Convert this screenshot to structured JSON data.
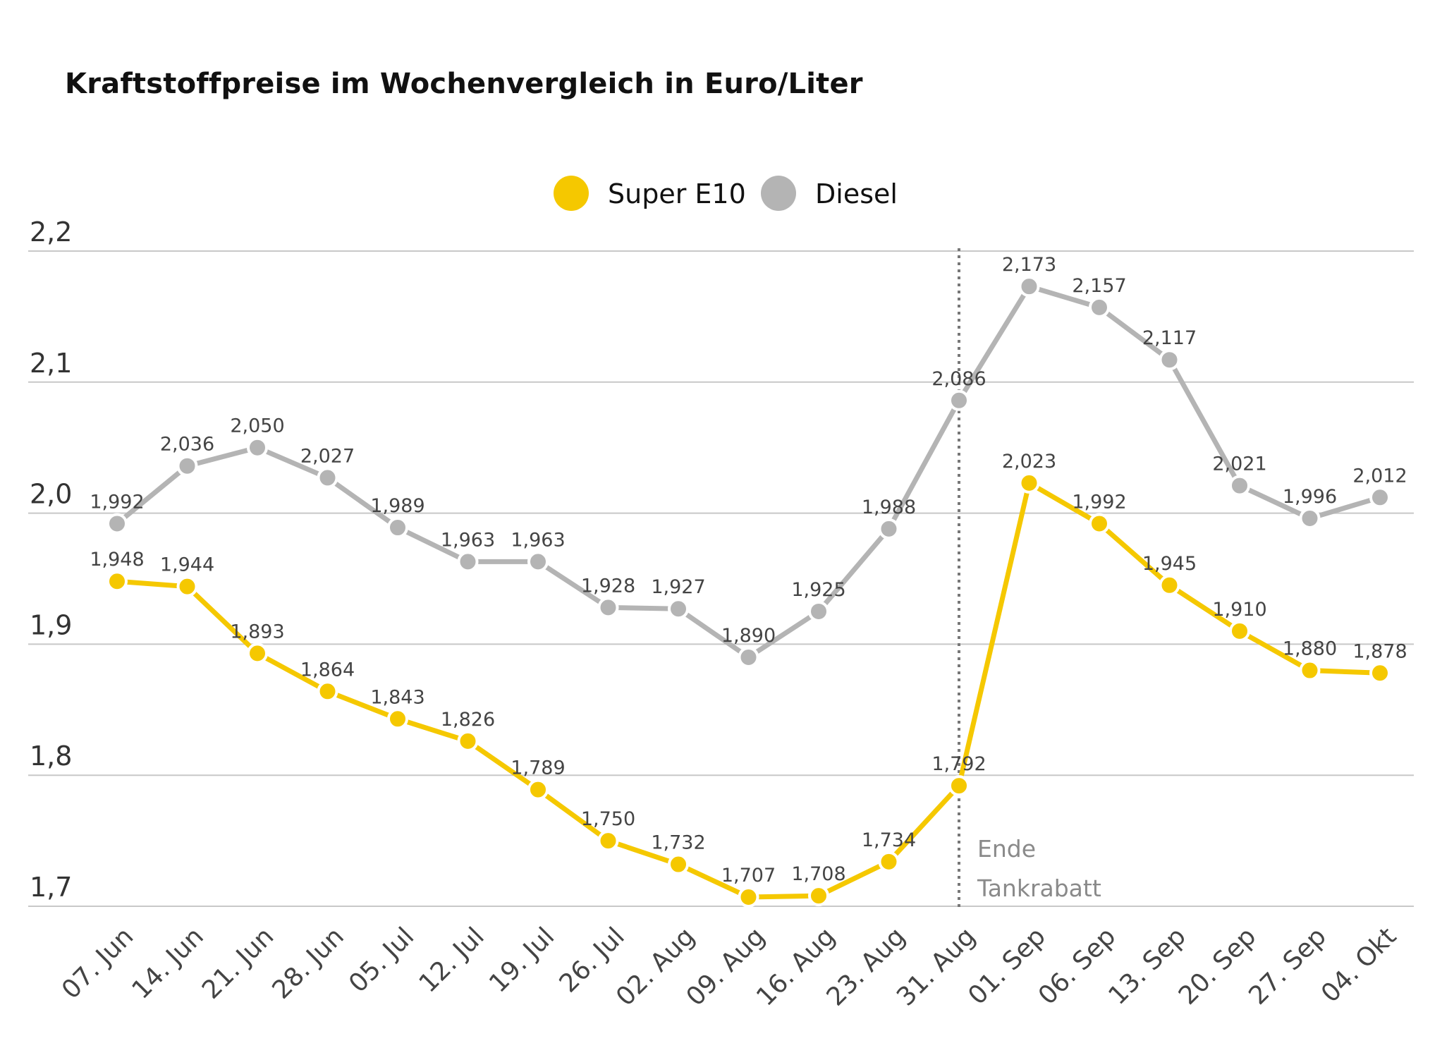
{
  "chart_data": {
    "type": "line",
    "title": "Kraftstoffpreise im Wochenvergleich in Euro/Liter",
    "xlabel": "",
    "ylabel": "",
    "categories": [
      "07. Jun",
      "14. Jun",
      "21. Jun",
      "28. Jun",
      "05. Jul",
      "12. Jul",
      "19. Jul",
      "26. Jul",
      "02. Aug",
      "09. Aug",
      "16. Aug",
      "23. Aug",
      "31. Aug",
      "01. Sep",
      "06. Sep",
      "13. Sep",
      "20. Sep",
      "27. Sep",
      "04. Okt"
    ],
    "series": [
      {
        "name": "Super E10",
        "color": "#f5c800",
        "values": [
          1.948,
          1.944,
          1.893,
          1.864,
          1.843,
          1.826,
          1.789,
          1.75,
          1.732,
          1.707,
          1.708,
          1.734,
          1.792,
          2.023,
          1.992,
          1.945,
          1.91,
          1.88,
          1.878
        ],
        "labels": [
          "1,948",
          "1,944",
          "1,893",
          "1,864",
          "1,843",
          "1,826",
          "1,789",
          "1,750",
          "1,732",
          "1,707",
          "1,708",
          "1,734",
          "1,792",
          "2,023",
          "1,992",
          "1,945",
          "1,910",
          "1,880",
          "1,878"
        ]
      },
      {
        "name": "Diesel",
        "color": "#b4b4b4",
        "values": [
          1.992,
          2.036,
          2.05,
          2.027,
          1.989,
          1.963,
          1.963,
          1.928,
          1.927,
          1.89,
          1.925,
          1.988,
          2.086,
          2.173,
          2.157,
          2.117,
          2.021,
          1.996,
          2.012
        ],
        "labels": [
          "1,992",
          "2,036",
          "2,050",
          "2,027",
          "1,989",
          "1,963",
          "1,963",
          "1,928",
          "1,927",
          "1,890",
          "1,925",
          "1,988",
          "2,086",
          "2,173",
          "2,157",
          "2,117",
          "2,021",
          "1,996",
          "2,012"
        ]
      }
    ],
    "ylim": [
      1.7,
      2.2
    ],
    "yticks": [
      1.7,
      1.8,
      1.9,
      2.0,
      2.1,
      2.2
    ],
    "ytick_labels": [
      "1,7",
      "1,8",
      "1,9",
      "2,0",
      "2,1",
      "2,2"
    ],
    "grid": true,
    "legend_position": "top-center",
    "annotation": {
      "after_category": "31. Aug",
      "lines": [
        "Ende",
        "Tankrabatt"
      ]
    }
  }
}
